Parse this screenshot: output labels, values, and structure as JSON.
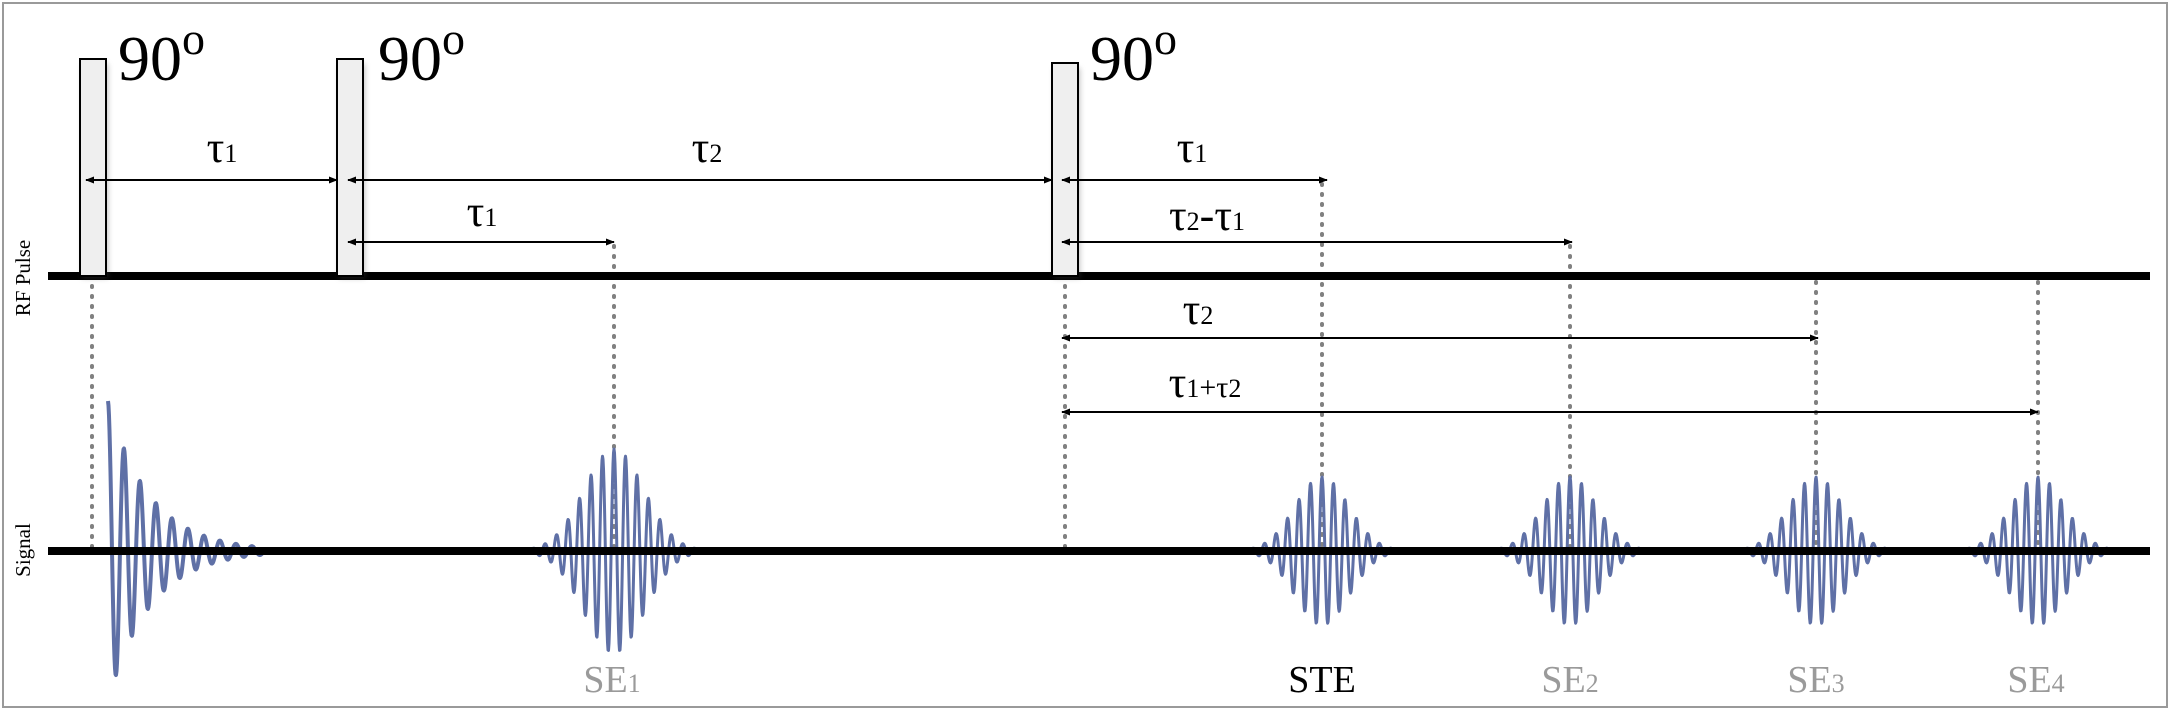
{
  "axes": {
    "rf": {
      "label": "RF Pulse"
    },
    "signal": {
      "label": "Signal"
    }
  },
  "pulses": [
    {
      "id": "p1",
      "label": "90",
      "sup": "o"
    },
    {
      "id": "p2",
      "label": "90",
      "sup": "o"
    },
    {
      "id": "p3",
      "label": "90",
      "sup": "o"
    }
  ],
  "intervals": [
    {
      "id": "tau1-a",
      "text": "τ",
      "sub": "1"
    },
    {
      "id": "tau2-a",
      "text": "τ",
      "sub": "2"
    },
    {
      "id": "tau1-b",
      "text": "τ",
      "sub": "1"
    },
    {
      "id": "tau1-c",
      "text": "τ",
      "sub": "1"
    },
    {
      "id": "tau2-minus-tau1",
      "text": "τ",
      "sub": "2",
      "text2": "-τ",
      "sub2": "1"
    },
    {
      "id": "tau2-b",
      "text": "τ",
      "sub": "2"
    },
    {
      "id": "tau1-plus-tau2",
      "text": "τ",
      "sub": "1",
      "text2": "+τ",
      "sub2": "2"
    }
  ],
  "echoes": [
    {
      "id": "fid",
      "label": "",
      "sub": "",
      "label_color": ""
    },
    {
      "id": "se1",
      "label": "SE",
      "sub": "1",
      "label_color": "#9a9a9a"
    },
    {
      "id": "ste",
      "label": "STE",
      "sub": "",
      "label_color": "#000000"
    },
    {
      "id": "se2",
      "label": "SE",
      "sub": "2",
      "label_color": "#9a9a9a"
    },
    {
      "id": "se3",
      "label": "SE",
      "sub": "3",
      "label_color": "#9a9a9a"
    },
    {
      "id": "se4",
      "label": "SE",
      "sub": "4",
      "label_color": "#9a9a9a"
    }
  ],
  "colors": {
    "signal": "#5f70a6",
    "axis": "#000000",
    "dotted": "#808080",
    "frame": "#9a9a9a",
    "pulse_fill": "#efefef"
  }
}
